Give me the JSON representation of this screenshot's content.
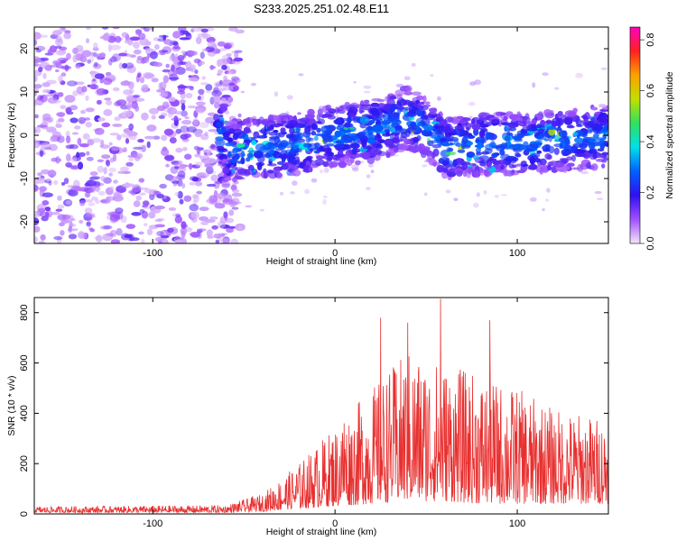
{
  "title": "S233.2025.251.02.48.E11",
  "chart_data": [
    {
      "type": "heatmap",
      "name": "spectrogram",
      "xlabel": "Height of straight line (km)",
      "ylabel": "Frequency (Hz)",
      "xlim": [
        -165,
        150
      ],
      "ylim": [
        -25,
        25
      ],
      "xticks": [
        -100,
        0,
        100
      ],
      "yticks": [
        -20,
        -10,
        0,
        10,
        20
      ],
      "colorbar": {
        "label": "Normalized spectral amplitude",
        "range": [
          0,
          0.85
        ],
        "ticks": [
          0.0,
          0.2,
          0.4,
          0.6,
          0.8
        ],
        "colors": [
          "#f3e6f9",
          "#a050ff",
          "#3010f0",
          "#0060ff",
          "#00e0e8",
          "#30e060",
          "#c0e000",
          "#ffa000",
          "#ff2020",
          "#ff00c0"
        ]
      },
      "ridge": {
        "onset_km": -60,
        "center_hz": [
          [
            -60,
            -4
          ],
          [
            -40,
            -3
          ],
          [
            -20,
            -2
          ],
          [
            0,
            0
          ],
          [
            20,
            1
          ],
          [
            40,
            4
          ],
          [
            50,
            2
          ],
          [
            60,
            -3
          ],
          [
            80,
            -2
          ],
          [
            100,
            -2
          ],
          [
            130,
            -1
          ],
          [
            150,
            0
          ]
        ],
        "noise_region_x": [
          -165,
          -60
        ]
      }
    },
    {
      "type": "line",
      "name": "snr",
      "xlabel": "Height of straight line (km)",
      "ylabel": "SNR (10 * v/v)",
      "xlim": [
        -165,
        150
      ],
      "ylim": [
        0,
        860
      ],
      "xticks": [
        -100,
        0,
        100
      ],
      "yticks": [
        0,
        200,
        400,
        600,
        800
      ],
      "color": "#e83030",
      "series_envelope": [
        {
          "x": -165,
          "low": 5,
          "high": 30
        },
        {
          "x": -60,
          "low": 5,
          "high": 35
        },
        {
          "x": -40,
          "low": 10,
          "high": 80
        },
        {
          "x": -20,
          "low": 20,
          "high": 200
        },
        {
          "x": 0,
          "low": 30,
          "high": 350
        },
        {
          "x": 20,
          "low": 40,
          "high": 500
        },
        {
          "x": 40,
          "low": 50,
          "high": 650
        },
        {
          "x": 60,
          "low": 50,
          "high": 600
        },
        {
          "x": 80,
          "low": 40,
          "high": 550
        },
        {
          "x": 100,
          "low": 40,
          "high": 500
        },
        {
          "x": 120,
          "low": 40,
          "high": 420
        },
        {
          "x": 150,
          "low": 40,
          "high": 380
        }
      ],
      "peaks": [
        {
          "x": 5,
          "y": 360
        },
        {
          "x": 25,
          "y": 780
        },
        {
          "x": 40,
          "y": 760
        },
        {
          "x": 58,
          "y": 855
        },
        {
          "x": 85,
          "y": 770
        },
        {
          "x": 150,
          "y": 450
        }
      ]
    }
  ]
}
